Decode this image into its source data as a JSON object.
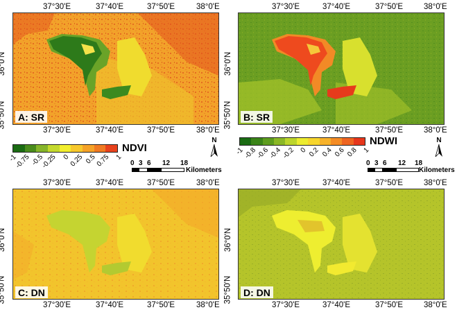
{
  "panels": {
    "a": {
      "label": "A: SR"
    },
    "b": {
      "label": "B: SR"
    },
    "c": {
      "label": "C: DN"
    },
    "d": {
      "label": "D: DN"
    }
  },
  "axes": {
    "longitude_ticks": [
      "37°30'E",
      "37°40'E",
      "37°50'E",
      "38°0'E"
    ],
    "latitude_ticks": [
      "36°0'N",
      "35°50'N"
    ]
  },
  "legends": {
    "ndvi": {
      "title": "NDVI",
      "ticks": [
        "-1",
        "-0.75",
        "-0.5",
        "-0.25",
        "0",
        "0.25",
        "0.5",
        "0.75",
        "1"
      ],
      "colors": [
        "#1a6b12",
        "#4a8c1c",
        "#86b52a",
        "#c4d92e",
        "#f2ee2e",
        "#f7c82c",
        "#f5a227",
        "#f07a22",
        "#e8421c"
      ]
    },
    "ndwi": {
      "title": "NDWI",
      "ticks": [
        "-1",
        "-0.8",
        "-0.6",
        "-0.4",
        "-0.2",
        "0",
        "0.2",
        "0.4",
        "0.6",
        "0.8",
        "1"
      ],
      "colors": [
        "#1a6b12",
        "#3a8418",
        "#5e9d1e",
        "#8bb826",
        "#bcd52c",
        "#ecec30",
        "#f7d62d",
        "#f7b22a",
        "#f48c25",
        "#ee6420",
        "#e6361b"
      ]
    }
  },
  "scale": {
    "ticks": [
      "0",
      "3",
      "6",
      "12",
      "18"
    ],
    "unit": "Kilometers"
  },
  "north_arrow": {
    "label": "N"
  },
  "map_colors": {
    "a_bg": "#f2a22a",
    "a_hot": "#e4521e",
    "a_lake": "#2d7a1a",
    "a_lake_edge": "#6aa328",
    "a_yellow": "#f0dc2e",
    "b_bg": "#6b9e22",
    "b_light": "#a6c52a",
    "b_lake": "#ee4a1e",
    "b_lake_edge": "#f28a26",
    "b_yellow": "#d8e02e",
    "c_bg": "#f2c42c",
    "c_orange": "#f3a82a",
    "c_lake": "#c5d431",
    "c_yellow": "#f1dc2e",
    "d_bg": "#b5c42a",
    "d_dark": "#98ac28",
    "d_lake": "#eeee30",
    "d_yellow": "#e4e230"
  }
}
